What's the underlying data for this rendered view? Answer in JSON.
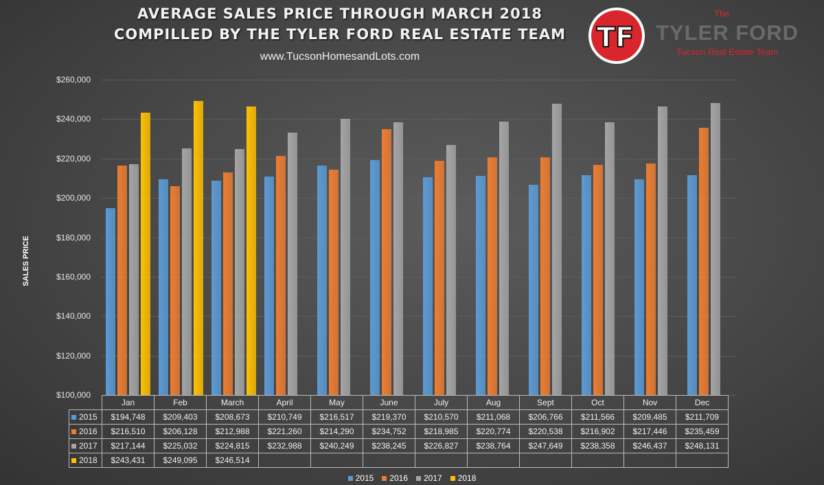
{
  "header": {
    "title_line1": "AVERAGE SALES PRICE THROUGH MARCH 2018",
    "title_line2": "COMPILLED BY THE TYLER FORD REAL ESTATE TEAM",
    "website": "www.TucsonHomesandLots.com"
  },
  "brand": {
    "logo_text": "TF",
    "the": "The",
    "name": "TYLER FORD",
    "subtitle": "Tucson Real Estate Team"
  },
  "chart_data": {
    "type": "bar",
    "ylabel": "SALES PRICE",
    "ylim": [
      100000,
      260000
    ],
    "yticks": [
      "$100,000",
      "$120,000",
      "$140,000",
      "$160,000",
      "$180,000",
      "$200,000",
      "$220,000",
      "$240,000",
      "$260,000"
    ],
    "grid": true,
    "legend_position": "bottom",
    "categories": [
      "Jan",
      "Feb",
      "March",
      "April",
      "May",
      "June",
      "July",
      "Aug",
      "Sept",
      "Oct",
      "Nov",
      "Dec"
    ],
    "series": [
      {
        "name": "2015",
        "color": "#5b9bd5",
        "values": [
          194748,
          209403,
          208673,
          210749,
          216517,
          219370,
          210570,
          211068,
          206766,
          211566,
          209485,
          211709
        ],
        "labels": [
          "$194,748",
          "$209,403",
          "$208,673",
          "$210,749",
          "$216,517",
          "$219,370",
          "$210,570",
          "$211,068",
          "$206,766",
          "$211,566",
          "$209,485",
          "$211,709"
        ]
      },
      {
        "name": "2016",
        "color": "#ed7d31",
        "values": [
          216510,
          206128,
          212988,
          221260,
          214290,
          234752,
          218985,
          220774,
          220538,
          216902,
          217446,
          235459
        ],
        "labels": [
          "$216,510",
          "$206,128",
          "$212,988",
          "$221,260",
          "$214,290",
          "$234,752",
          "$218,985",
          "$220,774",
          "$220,538",
          "$216,902",
          "$217,446",
          "$235,459"
        ]
      },
      {
        "name": "2017",
        "color": "#a5a5a5",
        "values": [
          217144,
          225032,
          224815,
          232988,
          240249,
          238245,
          226827,
          238764,
          247649,
          238358,
          246437,
          248131
        ],
        "labels": [
          "$217,144",
          "$225,032",
          "$224,815",
          "$232,988",
          "$240,249",
          "$238,245",
          "$226,827",
          "$238,764",
          "$247,649",
          "$238,358",
          "$246,437",
          "$248,131"
        ]
      },
      {
        "name": "2018",
        "color": "#ffc000",
        "values": [
          243431,
          249095,
          246514,
          null,
          null,
          null,
          null,
          null,
          null,
          null,
          null,
          null
        ],
        "labels": [
          "$243,431",
          "$249,095",
          "$246,514",
          "",
          "",
          "",
          "",
          "",
          "",
          "",
          "",
          ""
        ]
      }
    ]
  }
}
